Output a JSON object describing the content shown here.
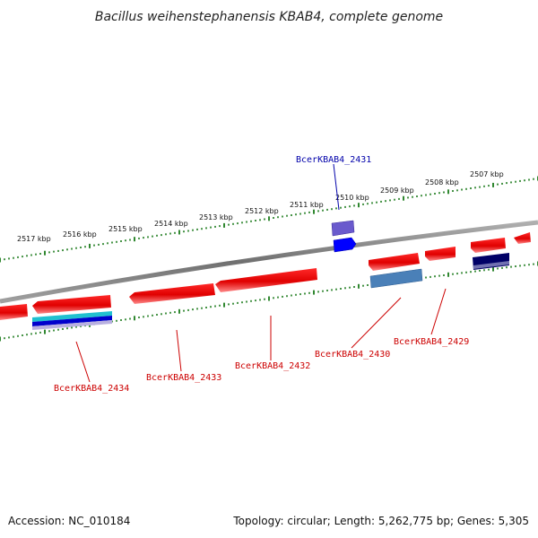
{
  "title": "Bacillus weihenstephanensis KBAB4, complete genome",
  "footer": {
    "accession": "Accession: NC_010184",
    "info": "Topology: circular; Length: 5,262,775 bp; Genes: 5,305"
  },
  "scale": {
    "labels": [
      "2517 kbp",
      "2516 kbp",
      "2515 kbp",
      "2514 kbp",
      "2513 kbp",
      "2512 kbp",
      "2511 kbp",
      "2510 kbp",
      "2509 kbp",
      "2508 kbp",
      "2507 kbp"
    ]
  },
  "genes": {
    "top": {
      "label": "BcerKBAB4_2431",
      "color": "#0000aa"
    },
    "bottom": [
      {
        "label": "BcerKBAB4_2434",
        "color": "#cc0000"
      },
      {
        "label": "BcerKBAB4_2433",
        "color": "#cc0000"
      },
      {
        "label": "BcerKBAB4_2432",
        "color": "#cc0000"
      },
      {
        "label": "BcerKBAB4_2430",
        "color": "#cc0000"
      },
      {
        "label": "BcerKBAB4_2429",
        "color": "#cc0000"
      }
    ]
  },
  "colors": {
    "backbone": "#808080",
    "scale_ticks": "#1a7a1a",
    "gene_fill": "#ee0000",
    "gene_forward_blue": "#0000ff",
    "gene_purple": "#6a5acd",
    "cyan": "#20c0d0",
    "navy": "#000066",
    "steel": "#4a80b8"
  }
}
